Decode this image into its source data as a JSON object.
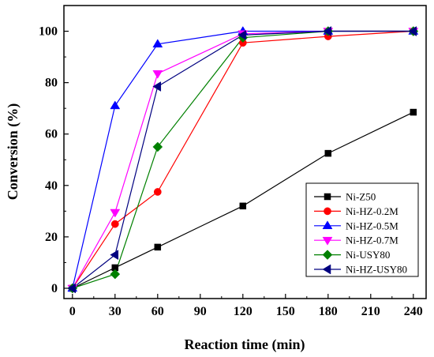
{
  "chart_data": {
    "type": "line",
    "xlabel": "Reaction time (min)",
    "ylabel": "Conversion (%)",
    "xlim": [
      -6,
      249
    ],
    "ylim": [
      -4,
      110
    ],
    "xticks": [
      0,
      30,
      60,
      90,
      120,
      150,
      180,
      210,
      240
    ],
    "yticks": [
      0,
      20,
      40,
      60,
      80,
      100
    ],
    "grid": false,
    "legend_position": "bottom-right",
    "series": [
      {
        "name": "Ni-Z50",
        "color": "#000000",
        "marker": "square",
        "x": [
          0,
          30,
          60,
          120,
          180,
          240
        ],
        "y": [
          0,
          8,
          16,
          32,
          52.5,
          68.5
        ]
      },
      {
        "name": "Ni-HZ-0.2M",
        "color": "#ff0000",
        "marker": "circle",
        "x": [
          0,
          30,
          60,
          120,
          180,
          240
        ],
        "y": [
          0,
          25,
          37.5,
          95.5,
          98,
          100
        ]
      },
      {
        "name": "Ni-HZ-0.5M",
        "color": "#0000ff",
        "marker": "triangle-up",
        "x": [
          0,
          30,
          60,
          120,
          180,
          240
        ],
        "y": [
          0,
          71,
          95,
          100,
          100,
          100
        ]
      },
      {
        "name": "Ni-HZ-0.7M",
        "color": "#ff00ff",
        "marker": "triangle-down",
        "x": [
          0,
          30,
          60,
          120,
          180,
          240
        ],
        "y": [
          0,
          29.5,
          83.5,
          99,
          100,
          100
        ]
      },
      {
        "name": "Ni-USY80",
        "color": "#008000",
        "marker": "diamond",
        "x": [
          0,
          30,
          60,
          120,
          180,
          240
        ],
        "y": [
          0,
          5.5,
          55,
          97.5,
          100,
          100
        ]
      },
      {
        "name": "Ni-HZ-USY80",
        "color": "#000080",
        "marker": "triangle-left",
        "x": [
          0,
          30,
          60,
          120,
          180,
          240
        ],
        "y": [
          0,
          13,
          78.5,
          98.5,
          100,
          100
        ]
      }
    ]
  }
}
